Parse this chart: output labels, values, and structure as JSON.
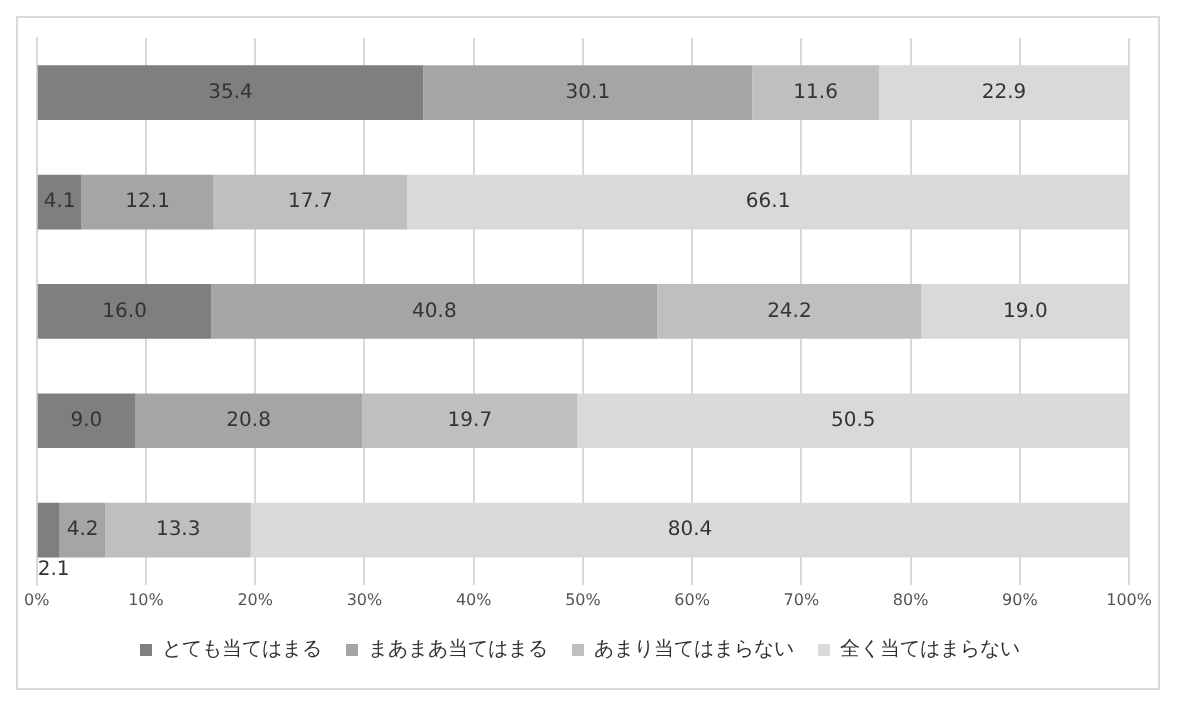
{
  "chart_data": {
    "type": "bar",
    "orientation": "horizontal",
    "stacked": true,
    "categories": [
      null,
      null,
      null,
      null,
      null
    ],
    "series": [
      {
        "name": "とても当てはまる",
        "color": "#7f7f7f",
        "values": [
          35.4,
          4.1,
          16,
          9,
          2.1
        ],
        "value_labels": [
          "35.4",
          "4.1",
          "16.0",
          "9.0",
          "2.1"
        ]
      },
      {
        "name": "まあまあ当てはまる",
        "color": "#a5a5a5",
        "values": [
          30.1,
          12.1,
          40.8,
          20.8,
          4.2
        ],
        "value_labels": [
          "30.1",
          "12.1",
          "40.8",
          "20.8",
          "4.2"
        ]
      },
      {
        "name": "あまり当てはまらない",
        "color": "#bfbfbf",
        "values": [
          11.6,
          17.7,
          24.2,
          19.7,
          13.3
        ],
        "value_labels": [
          "11.6",
          "17.7",
          "24.2",
          "19.7",
          "13.3"
        ]
      },
      {
        "name": "全く当てはまらない",
        "color": "#d9d9d9",
        "values": [
          22.9,
          66.1,
          19,
          50.5,
          80.4
        ],
        "value_labels": [
          "22.9",
          "66.1",
          "19.0",
          "50.5",
          "80.4"
        ]
      }
    ],
    "xlim": [
      0,
      100
    ],
    "xticks": [
      {
        "value": 0,
        "label": "0%"
      },
      {
        "value": 10,
        "label": "10%"
      },
      {
        "value": 20,
        "label": "20%"
      },
      {
        "value": 30,
        "label": "30%"
      },
      {
        "value": 40,
        "label": "40%"
      },
      {
        "value": 50,
        "label": "50%"
      },
      {
        "value": 60,
        "label": "60%"
      },
      {
        "value": 70,
        "label": "70%"
      },
      {
        "value": 80,
        "label": "80%"
      },
      {
        "value": 90,
        "label": "90%"
      },
      {
        "value": 100,
        "label": "100%"
      }
    ],
    "grid": "x",
    "legend": "bottom"
  }
}
